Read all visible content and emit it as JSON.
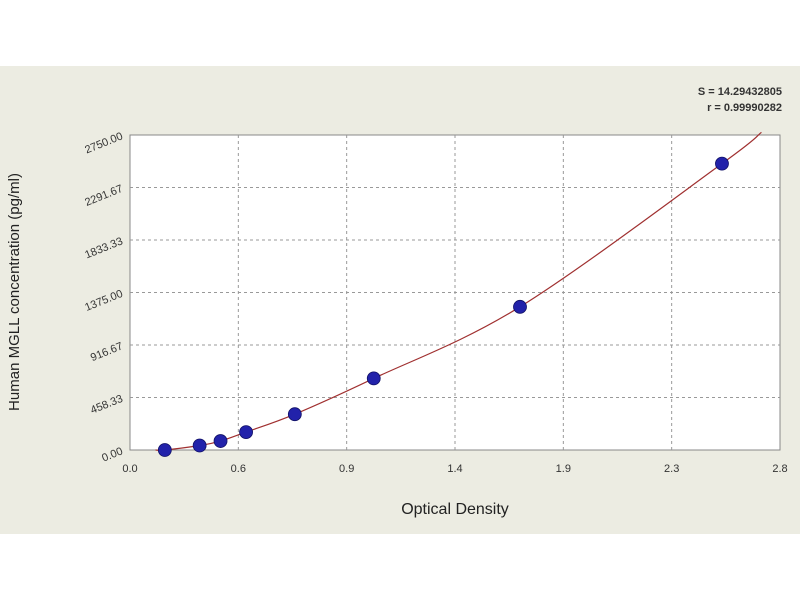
{
  "chart_data": {
    "type": "scatter",
    "title": "",
    "xlabel": "Optical Density",
    "ylabel": "Human MGLL concentration (pg/ml)",
    "xlim": [
      0.0,
      2.8
    ],
    "ylim": [
      0.0,
      2750.0
    ],
    "x_ticks": [
      "0.0",
      "0.6",
      "0.9",
      "1.4",
      "1.9",
      "2.3",
      "2.8"
    ],
    "y_ticks": [
      "0.00",
      "458.33",
      "916.67",
      "1375.00",
      "1833.33",
      "2291.67",
      "2750.00"
    ],
    "grid": true,
    "stats": {
      "s_line": "S = 14.29432805",
      "r_line": "r = 0.99990282"
    },
    "colors": {
      "points": "#2222aa",
      "curve": "#a03030",
      "grid": "#999999",
      "panel": "#ecece2"
    },
    "points": [
      {
        "x": 0.15,
        "y": 0.0
      },
      {
        "x": 0.3,
        "y": 39.06
      },
      {
        "x": 0.39,
        "y": 78.13
      },
      {
        "x": 0.5,
        "y": 156.25
      },
      {
        "x": 0.71,
        "y": 312.5
      },
      {
        "x": 1.05,
        "y": 625.0
      },
      {
        "x": 1.68,
        "y": 1250.0
      },
      {
        "x": 2.55,
        "y": 2500.0
      }
    ]
  }
}
